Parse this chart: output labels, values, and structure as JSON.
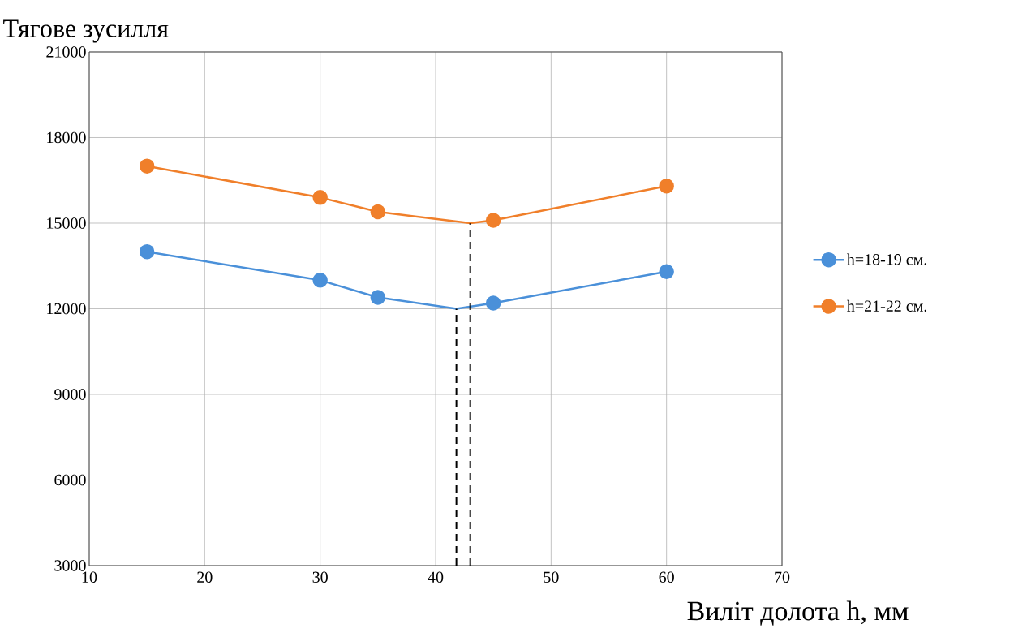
{
  "chart_data": {
    "type": "line",
    "title": "Тягове зусилля",
    "xlabel": "Виліт долота h, мм",
    "xlim": [
      10,
      70
    ],
    "ylim": [
      3000,
      21000
    ],
    "xticks": [
      10,
      20,
      30,
      40,
      50,
      60,
      70
    ],
    "yticks": [
      3000,
      6000,
      9000,
      12000,
      15000,
      18000,
      21000
    ],
    "grid": true,
    "legend": "right",
    "marker": "circle",
    "line_style": "solid",
    "series": [
      {
        "name": "h=18-19 см.",
        "color": "#4a90d9",
        "x": [
          15,
          30,
          35,
          41.8,
          45,
          60
        ],
        "values": [
          14000,
          13000,
          12400,
          12000,
          12200,
          13300
        ]
      },
      {
        "name": "h=21-22 см.",
        "color": "#f07f2a",
        "x": [
          15,
          30,
          35,
          43,
          45,
          60
        ],
        "values": [
          17000,
          15900,
          15400,
          15000,
          15100,
          16300
        ]
      },
      {
        "color": "#000000",
        "x": [
          41.8,
          41.8
        ],
        "values": [
          3000,
          12000
        ],
        "marker": "none",
        "line_style": "dashed"
      },
      {
        "color": "#000000",
        "x": [
          43,
          43
        ],
        "values": [
          3000,
          15000
        ],
        "marker": "none",
        "line_style": "dashed"
      }
    ]
  }
}
